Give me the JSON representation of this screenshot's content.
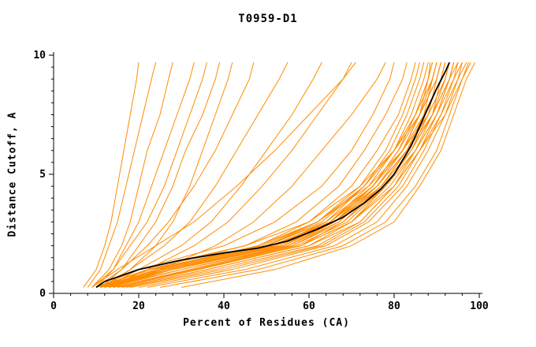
{
  "title": "T0959-D1",
  "colors": {
    "model_line": "#ff8c00",
    "reference_line": "#000000",
    "axis": "#000000",
    "background": "#ffffff"
  },
  "chart_data": {
    "type": "line",
    "title": "T0959-D1",
    "xlabel": "Percent of Residues (CA)",
    "ylabel": "Distance Cutoff, A",
    "xlim": [
      0,
      100
    ],
    "ylim": [
      0,
      10
    ],
    "grid": false,
    "legend_position": "none",
    "x_major_ticks": [
      0,
      20,
      40,
      60,
      80,
      100
    ],
    "x_tick_labels": [
      "0",
      "20",
      "40",
      "60",
      "80",
      "100"
    ],
    "x_minor_step": 4,
    "y_major_ticks": [
      0,
      5,
      10
    ],
    "y_tick_labels": [
      "0",
      "5",
      "10"
    ],
    "y_minor_step": 0.5,
    "series_y_levels": [
      0.25,
      1.0,
      2.0,
      3.0,
      4.5,
      6.0,
      7.5,
      9.0,
      9.7
    ],
    "model_curves_x": [
      [
        7,
        10,
        12,
        13.5,
        15,
        16.5,
        18,
        19.5,
        20
      ],
      [
        8,
        11,
        13,
        15,
        17,
        19,
        21,
        23,
        24
      ],
      [
        9,
        13,
        16,
        18,
        20,
        22,
        25,
        27,
        28
      ],
      [
        10,
        14,
        17,
        20,
        23,
        26,
        29,
        32,
        33
      ],
      [
        9,
        14,
        18,
        22,
        26,
        29,
        32,
        35,
        36
      ],
      [
        11,
        16,
        20,
        24,
        28,
        31,
        35,
        38,
        39
      ],
      [
        12,
        18,
        24,
        28,
        32,
        35,
        38,
        41,
        42
      ],
      [
        10,
        16,
        22,
        27,
        33,
        38,
        42,
        46,
        47
      ],
      [
        11,
        18,
        26,
        32,
        38,
        43,
        48,
        53,
        55
      ],
      [
        12,
        20,
        30,
        37,
        44,
        50,
        56,
        61,
        63
      ],
      [
        13,
        22,
        33,
        41,
        49,
        56,
        62,
        68,
        70
      ],
      [
        9,
        15,
        24,
        33,
        43,
        52,
        60,
        68,
        71
      ],
      [
        14,
        25,
        38,
        47,
        56,
        63,
        70,
        76,
        78
      ],
      [
        10,
        20,
        40,
        52,
        63,
        70,
        75,
        79,
        80
      ],
      [
        11,
        22,
        45,
        57,
        67,
        73,
        78,
        82,
        83
      ],
      [
        12,
        24,
        48,
        60,
        70,
        76,
        81,
        84,
        85
      ],
      [
        10,
        25,
        50,
        62,
        72,
        78,
        82,
        85,
        86
      ],
      [
        13,
        26,
        52,
        64,
        73,
        79,
        83,
        86,
        87
      ],
      [
        11,
        28,
        54,
        65,
        74,
        80,
        84,
        87,
        88
      ],
      [
        12,
        30,
        55,
        66,
        75,
        81,
        85,
        88,
        88.5
      ],
      [
        14,
        32,
        56,
        67,
        76,
        82,
        86,
        88,
        89
      ],
      [
        10,
        22,
        50,
        63,
        73,
        80,
        85,
        88,
        89
      ],
      [
        13,
        28,
        53,
        65,
        75,
        81,
        86,
        89,
        90
      ],
      [
        15,
        34,
        58,
        68,
        77,
        83,
        87,
        89,
        90
      ],
      [
        11,
        24,
        49,
        62,
        73,
        80,
        85,
        89,
        90
      ],
      [
        12,
        26,
        52,
        65,
        75,
        82,
        86,
        90,
        91
      ],
      [
        16,
        36,
        60,
        70,
        78,
        84,
        88,
        90,
        91
      ],
      [
        10,
        20,
        45,
        60,
        72,
        80,
        86,
        90,
        91
      ],
      [
        13,
        30,
        55,
        67,
        77,
        83,
        87,
        91,
        92
      ],
      [
        11,
        25,
        50,
        64,
        75,
        82,
        87,
        91,
        92
      ],
      [
        17,
        38,
        62,
        72,
        80,
        85,
        89,
        91,
        92
      ],
      [
        12,
        28,
        54,
        66,
        76,
        83,
        88,
        92,
        93
      ],
      [
        14,
        32,
        57,
        69,
        78,
        84,
        89,
        92,
        93
      ],
      [
        10,
        23,
        48,
        62,
        74,
        82,
        88,
        92,
        93
      ],
      [
        18,
        40,
        63,
        73,
        81,
        86,
        90,
        93,
        94
      ],
      [
        12,
        27,
        53,
        66,
        77,
        84,
        89,
        93,
        94
      ],
      [
        15,
        34,
        58,
        70,
        79,
        85,
        90,
        93,
        94
      ],
      [
        11,
        26,
        51,
        65,
        76,
        83,
        89,
        93,
        95
      ],
      [
        20,
        42,
        64,
        74,
        82,
        87,
        91,
        94,
        95
      ],
      [
        13,
        30,
        56,
        68,
        78,
        85,
        90,
        94,
        96
      ],
      [
        16,
        36,
        60,
        72,
        80,
        86,
        91,
        95,
        96
      ],
      [
        22,
        45,
        66,
        76,
        83,
        88,
        92,
        95,
        97
      ],
      [
        14,
        33,
        58,
        70,
        80,
        86,
        92,
        96,
        97.5
      ],
      [
        25,
        48,
        68,
        78,
        85,
        90,
        93,
        96,
        98
      ],
      [
        30,
        52,
        70,
        80,
        86,
        91,
        94,
        97,
        99
      ]
    ],
    "reference_curve_points": [
      [
        10,
        0.25
      ],
      [
        12,
        0.5
      ],
      [
        20,
        1.0
      ],
      [
        30,
        1.4
      ],
      [
        40,
        1.7
      ],
      [
        48,
        1.9
      ],
      [
        55,
        2.2
      ],
      [
        62,
        2.7
      ],
      [
        68,
        3.2
      ],
      [
        73,
        3.8
      ],
      [
        77,
        4.4
      ],
      [
        80,
        5.0
      ],
      [
        82,
        5.6
      ],
      [
        84,
        6.2
      ],
      [
        86,
        7.0
      ],
      [
        88,
        7.8
      ],
      [
        90,
        8.6
      ],
      [
        92,
        9.3
      ],
      [
        93,
        9.7
      ]
    ]
  }
}
